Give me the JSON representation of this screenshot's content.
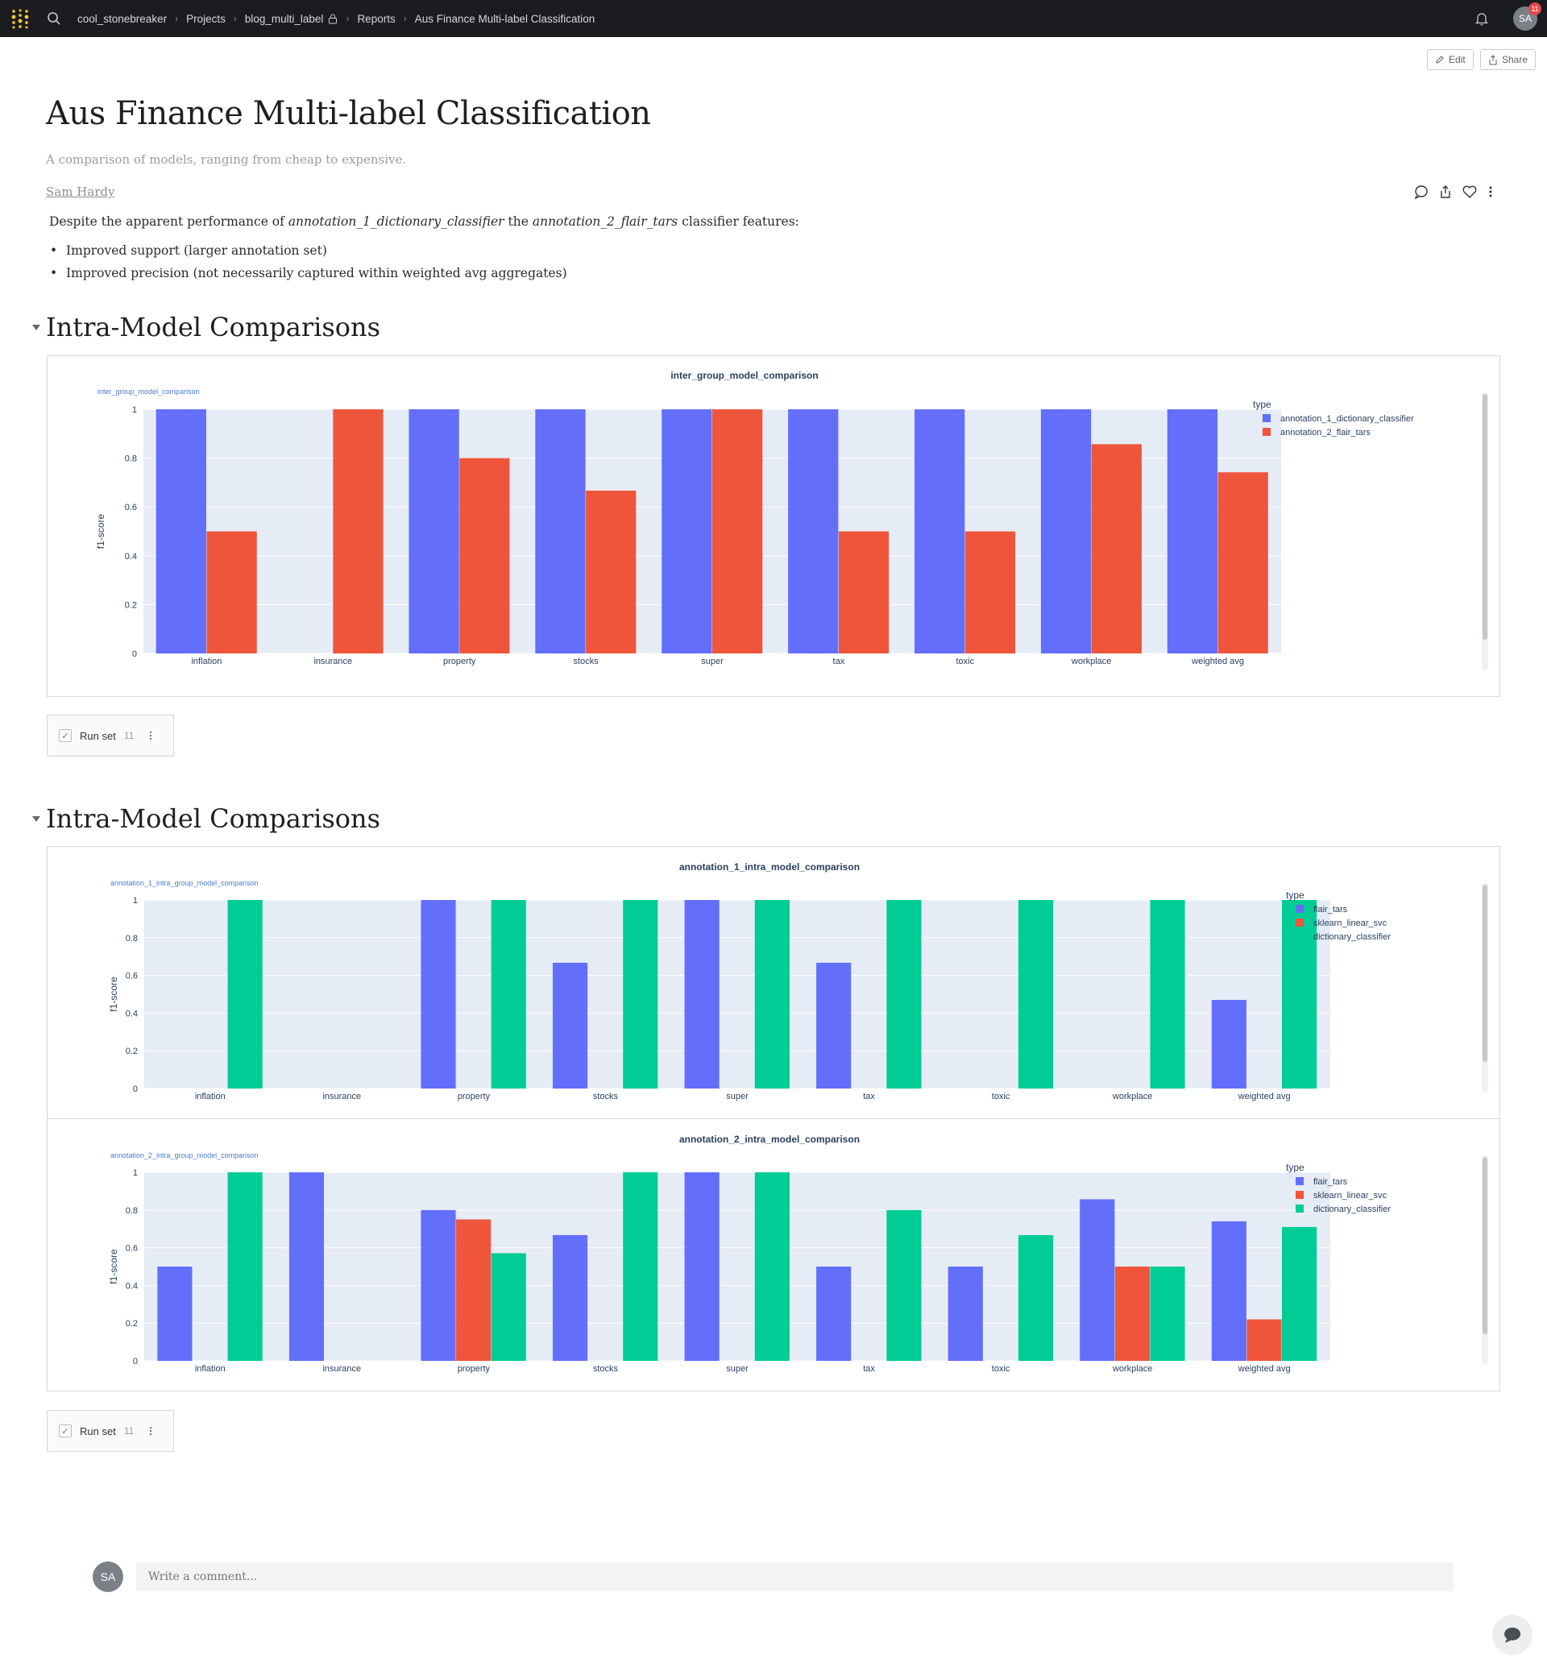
{
  "topbar": {
    "breadcrumbs": [
      "cool_stonebreaker",
      "Projects",
      "blog_multi_label",
      "Reports",
      "Aus Finance Multi-label Classification"
    ],
    "avatar": "SA",
    "notification_count": "11"
  },
  "toolbar": {
    "edit_label": "Edit",
    "share_label": "Share"
  },
  "report": {
    "title": "Aus Finance Multi-label Classification",
    "subtitle": "A comparison of models, ranging from cheap to expensive.",
    "author": "Sam Hardy",
    "intro_prefix": "Despite the apparent performance of",
    "intro_model1": "annotation_1_dictionary_classifier",
    "intro_mid": "the",
    "intro_model2": "annotation_2_flair_tars",
    "intro_suffix": "classifier features:",
    "bullets": [
      "Improved support (larger annotation set)",
      "Improved precision (not necessarily captured within weighted avg aggregates)"
    ]
  },
  "sections": [
    {
      "heading": "Intra-Model Comparisons",
      "runset_label": "Run set",
      "runset_count": "11"
    },
    {
      "heading": "Intra-Model Comparisons",
      "runset_label": "Run set",
      "runset_count": "11"
    }
  ],
  "comment": {
    "avatar": "SA",
    "placeholder": "Write a comment..."
  },
  "colors": {
    "series_blue": "#636efa",
    "series_red": "#ef553b",
    "series_green": "#00cc96",
    "plot_bg": "#e5ecf6"
  },
  "chart_data": [
    {
      "type": "bar",
      "title": "inter_group_model_comparison",
      "subtitle": "inter_group_model_comparison",
      "xlabel": "",
      "ylabel": "f1-score",
      "legend_title": "type",
      "ylim": [
        0,
        1
      ],
      "yticks": [
        0,
        0.2,
        0.4,
        0.6,
        0.8,
        1
      ],
      "categories": [
        "inflation",
        "insurance",
        "property",
        "stocks",
        "super",
        "tax",
        "toxic",
        "workplace",
        "weighted avg"
      ],
      "series": [
        {
          "name": "annotation_1_dictionary_classifier",
          "color": "#636efa",
          "values": [
            1,
            0,
            1,
            1,
            1,
            1,
            1,
            1,
            1
          ]
        },
        {
          "name": "annotation_2_flair_tars",
          "color": "#ef553b",
          "values": [
            0.5,
            1,
            0.8,
            0.667,
            1,
            0.5,
            0.5,
            0.857,
            0.742
          ]
        }
      ]
    },
    {
      "type": "bar",
      "title": "annotation_1_intra_model_comparison",
      "subtitle": "annotation_1_intra_group_model_comparison",
      "xlabel": "",
      "ylabel": "f1-score",
      "legend_title": "type",
      "ylim": [
        0,
        1
      ],
      "yticks": [
        0,
        0.2,
        0.4,
        0.6,
        0.8,
        1
      ],
      "categories": [
        "inflation",
        "insurance",
        "property",
        "stocks",
        "super",
        "tax",
        "toxic",
        "workplace",
        "weighted avg"
      ],
      "series": [
        {
          "name": "flair_tars",
          "color": "#636efa",
          "values": [
            0,
            0,
            1,
            0.667,
            1,
            0.667,
            0,
            0,
            0.47
          ]
        },
        {
          "name": "sklearn_linear_svc",
          "color": "#ef553b",
          "values": [
            0,
            0,
            0,
            0,
            0,
            0,
            0,
            0,
            0
          ]
        },
        {
          "name": "dictionary_classifier",
          "color": "#00cc96",
          "values": [
            1,
            0,
            1,
            1,
            1,
            1,
            1,
            1,
            1
          ]
        }
      ]
    },
    {
      "type": "bar",
      "title": "annotation_2_intra_model_comparison",
      "subtitle": "annotation_2_intra_group_model_comparison",
      "xlabel": "",
      "ylabel": "f1-score",
      "legend_title": "type",
      "ylim": [
        0,
        1
      ],
      "yticks": [
        0,
        0.2,
        0.4,
        0.6,
        0.8,
        1
      ],
      "categories": [
        "inflation",
        "insurance",
        "property",
        "stocks",
        "super",
        "tax",
        "toxic",
        "workplace",
        "weighted avg"
      ],
      "series": [
        {
          "name": "flair_tars",
          "color": "#636efa",
          "values": [
            0.5,
            1,
            0.8,
            0.667,
            1,
            0.5,
            0.5,
            0.857,
            0.74
          ]
        },
        {
          "name": "sklearn_linear_svc",
          "color": "#ef553b",
          "values": [
            0,
            0,
            0.75,
            0,
            0,
            0,
            0,
            0.5,
            0.22
          ]
        },
        {
          "name": "dictionary_classifier",
          "color": "#00cc96",
          "values": [
            1,
            0,
            0.571,
            1,
            1,
            0.8,
            0.667,
            0.5,
            0.71
          ]
        }
      ]
    }
  ]
}
